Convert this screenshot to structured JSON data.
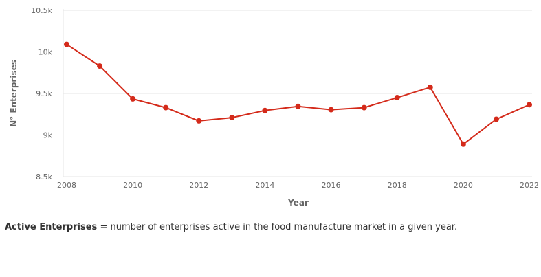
{
  "chart_data": {
    "type": "line",
    "title": "",
    "xlabel": "Year",
    "ylabel": "N° Enterprises",
    "x": [
      2008,
      2009,
      2010,
      2011,
      2012,
      2013,
      2014,
      2015,
      2016,
      2017,
      2018,
      2019,
      2020,
      2021,
      2022
    ],
    "series": [
      {
        "values": [
          10090,
          9830,
          9435,
          9330,
          9170,
          9210,
          9295,
          9345,
          9305,
          9330,
          9450,
          9575,
          8890,
          9190,
          9365
        ],
        "color": "#d42a1a"
      }
    ],
    "ylim": [
      8500,
      10500
    ],
    "xlim": [
      2008,
      2022
    ],
    "yticks": [
      8500,
      9000,
      9500,
      10000,
      10500
    ],
    "ytick_labels": [
      "8.5k",
      "9k",
      "9.5k",
      "10k",
      "10.5k"
    ],
    "xticks": [
      2008,
      2010,
      2012,
      2014,
      2016,
      2018,
      2020,
      2022
    ],
    "xtick_labels": [
      "2008",
      "2010",
      "2012",
      "2014",
      "2016",
      "2018",
      "2020",
      "2022"
    ],
    "grid": true,
    "legend": "none"
  },
  "footnote": {
    "term": "Active Enterprises",
    "definition": " = number of enterprises active in the food manufacture market in a given year."
  }
}
